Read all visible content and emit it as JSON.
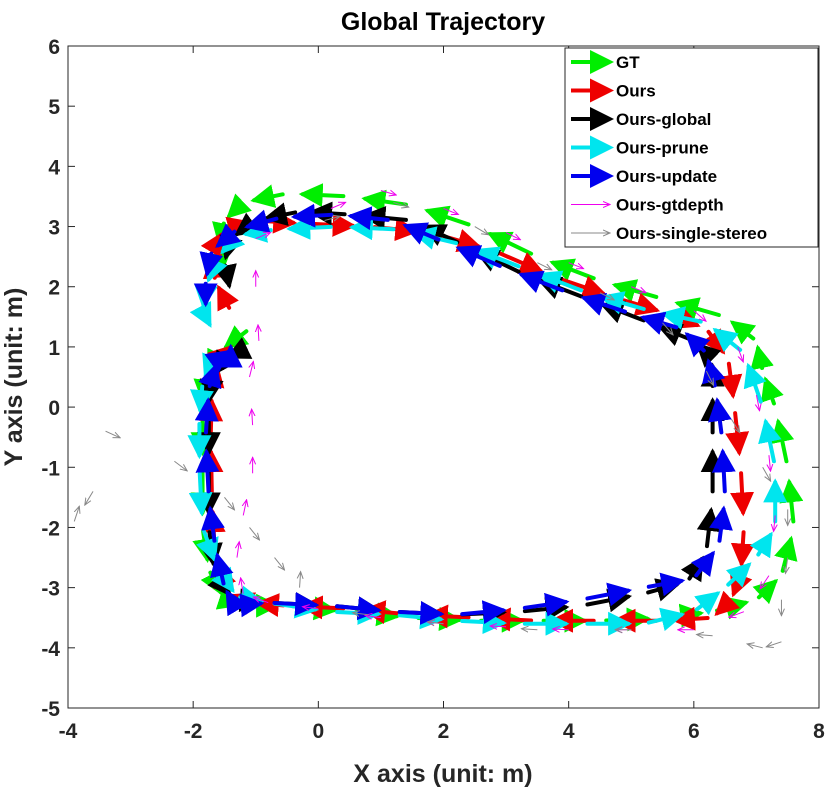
{
  "chart_data": {
    "type": "line",
    "title": "Global Trajectory",
    "xlabel": "X axis (unit: m)",
    "ylabel": "Y axis (unit: m)",
    "xlim": [
      -4,
      8
    ],
    "ylim": [
      -5,
      6
    ],
    "xticks": [
      -4,
      -2,
      0,
      2,
      4,
      6,
      8
    ],
    "yticks": [
      -5,
      -4,
      -3,
      -2,
      -1,
      0,
      1,
      2,
      3,
      4,
      5,
      6
    ],
    "grid": false,
    "legend_position": "top-right",
    "series": [
      {
        "name": "GT",
        "color": "#00ee00",
        "style": "dashed-arrows",
        "points": [
          [
            -1.1,
            1.3
          ],
          [
            -1.6,
            0.9
          ],
          [
            -1.8,
            0.5
          ],
          [
            -1.85,
            0
          ],
          [
            -1.85,
            -1
          ],
          [
            -1.85,
            -2
          ],
          [
            -1.75,
            -2.7
          ],
          [
            -1.5,
            -3.2
          ],
          [
            -1.2,
            -3.3
          ],
          [
            -0.5,
            -3.3
          ],
          [
            0.5,
            -3.4
          ],
          [
            1.5,
            -3.5
          ],
          [
            2.5,
            -3.55
          ],
          [
            3.5,
            -3.55
          ],
          [
            4.5,
            -3.55
          ],
          [
            5.5,
            -3.5
          ],
          [
            6.3,
            -3.4
          ],
          [
            7.0,
            -3.2
          ],
          [
            7.4,
            -2.8
          ],
          [
            7.6,
            -2.0
          ],
          [
            7.5,
            -1.0
          ],
          [
            7.3,
            0
          ],
          [
            7.1,
            0.6
          ],
          [
            7.0,
            1.1
          ],
          [
            6.5,
            1.5
          ],
          [
            5.5,
            1.8
          ],
          [
            4.5,
            2.1
          ],
          [
            3.5,
            2.5
          ],
          [
            2.5,
            3.0
          ],
          [
            1.5,
            3.35
          ],
          [
            0.5,
            3.5
          ],
          [
            -0.5,
            3.55
          ],
          [
            -1.2,
            3.4
          ],
          [
            -1.5,
            3.1
          ],
          [
            -1.6,
            2.6
          ],
          [
            -1.55,
            2.1
          ]
        ]
      },
      {
        "name": "Ours",
        "color": "#ee0000",
        "style": "dashed-arrows",
        "points": [
          [
            -1.4,
            1.6
          ],
          [
            -1.65,
            2.1
          ],
          [
            -1.7,
            2.6
          ],
          [
            -1.5,
            2.95
          ],
          [
            -1.0,
            3.1
          ],
          [
            -0.2,
            3.05
          ],
          [
            0.8,
            3.0
          ],
          [
            1.8,
            2.9
          ],
          [
            2.8,
            2.6
          ],
          [
            3.8,
            2.15
          ],
          [
            4.8,
            1.8
          ],
          [
            5.6,
            1.55
          ],
          [
            6.2,
            1.3
          ],
          [
            6.55,
            0.8
          ],
          [
            6.65,
            0
          ],
          [
            6.75,
            -1
          ],
          [
            6.8,
            -2
          ],
          [
            6.75,
            -2.8
          ],
          [
            6.6,
            -3.2
          ],
          [
            6.3,
            -3.5
          ],
          [
            5.5,
            -3.55
          ],
          [
            4.5,
            -3.55
          ],
          [
            3.5,
            -3.55
          ],
          [
            2.5,
            -3.5
          ],
          [
            1.5,
            -3.45
          ],
          [
            0.5,
            -3.35
          ],
          [
            -0.5,
            -3.3
          ],
          [
            -1.1,
            -3.25
          ],
          [
            -1.45,
            -3.1
          ],
          [
            -1.65,
            -2.5
          ],
          [
            -1.7,
            -1.5
          ],
          [
            -1.72,
            -0.5
          ],
          [
            -1.7,
            0.3
          ],
          [
            -1.6,
            0.8
          ],
          [
            -1.35,
            1.05
          ]
        ]
      },
      {
        "name": "Ours-global",
        "color": "#000000",
        "style": "dashed-arrows",
        "points": [
          [
            -1.2,
            0.95
          ],
          [
            -1.5,
            0.8
          ],
          [
            -1.7,
            0.5
          ],
          [
            -1.75,
            0
          ],
          [
            -1.75,
            -1
          ],
          [
            -1.75,
            -2
          ],
          [
            -1.65,
            -2.8
          ],
          [
            -1.35,
            -3.2
          ],
          [
            -0.8,
            -3.25
          ],
          [
            0.2,
            -3.3
          ],
          [
            1.2,
            -3.4
          ],
          [
            2.2,
            -3.45
          ],
          [
            3.2,
            -3.4
          ],
          [
            4.2,
            -3.3
          ],
          [
            5.2,
            -3.1
          ],
          [
            5.9,
            -2.9
          ],
          [
            6.2,
            -2.4
          ],
          [
            6.3,
            -1.5
          ],
          [
            6.3,
            -0.5
          ],
          [
            6.3,
            0.3
          ],
          [
            6.3,
            0.8
          ],
          [
            6.0,
            1.1
          ],
          [
            5.3,
            1.4
          ],
          [
            4.3,
            1.8
          ],
          [
            3.3,
            2.2
          ],
          [
            2.3,
            2.7
          ],
          [
            1.5,
            3.1
          ],
          [
            0.5,
            3.2
          ],
          [
            -0.3,
            3.25
          ],
          [
            -1.0,
            3.1
          ],
          [
            -1.4,
            2.8
          ],
          [
            -1.5,
            2.4
          ],
          [
            -1.4,
            1.9
          ]
        ]
      },
      {
        "name": "Ours-prune",
        "color": "#00e5ee",
        "style": "dashed-arrows",
        "points": [
          [
            -1.65,
            0.9
          ],
          [
            -1.85,
            0.4
          ],
          [
            -1.9,
            -0.2
          ],
          [
            -1.9,
            -1
          ],
          [
            -1.85,
            -2
          ],
          [
            -1.6,
            -2.7
          ],
          [
            -1.3,
            -3.15
          ],
          [
            -0.8,
            -3.25
          ],
          [
            0.2,
            -3.4
          ],
          [
            1.2,
            -3.45
          ],
          [
            2.2,
            -3.55
          ],
          [
            3.2,
            -3.6
          ],
          [
            4.2,
            -3.6
          ],
          [
            5.2,
            -3.6
          ],
          [
            6.0,
            -3.4
          ],
          [
            6.5,
            -3.0
          ],
          [
            7.0,
            -2.5
          ],
          [
            7.3,
            -2.0
          ],
          [
            7.3,
            -1.0
          ],
          [
            7.1,
            0
          ],
          [
            6.8,
            0.9
          ],
          [
            6.2,
            1.4
          ],
          [
            5.3,
            1.6
          ],
          [
            4.3,
            1.9
          ],
          [
            3.3,
            2.3
          ],
          [
            2.3,
            2.7
          ],
          [
            1.3,
            2.95
          ],
          [
            0.3,
            3.0
          ],
          [
            -0.7,
            2.95
          ],
          [
            -1.3,
            2.85
          ],
          [
            -1.6,
            2.5
          ],
          [
            -1.8,
            2.0
          ],
          [
            -1.85,
            1.6
          ],
          [
            -1.7,
            1.3
          ]
        ]
      },
      {
        "name": "Ours-update",
        "color": "#0000ee",
        "style": "dashed-arrows",
        "points": [
          [
            -1.3,
            -3.35
          ],
          [
            -1.5,
            -3.0
          ],
          [
            -1.65,
            -2.3
          ],
          [
            -1.75,
            -1.5
          ],
          [
            -1.8,
            -0.5
          ],
          [
            -1.75,
            0.3
          ],
          [
            -1.6,
            0.8
          ],
          [
            -1.4,
            0.95
          ],
          [
            -1.4,
            1.0
          ]
        ],
        "points_b": [
          [
            -1.3,
            -3.3
          ],
          [
            -0.8,
            -3.25
          ],
          [
            0.2,
            -3.3
          ],
          [
            1.2,
            -3.4
          ],
          [
            2.2,
            -3.45
          ],
          [
            3.2,
            -3.35
          ],
          [
            4.2,
            -3.2
          ],
          [
            5.2,
            -3.0
          ],
          [
            6.0,
            -2.85
          ],
          [
            6.4,
            -2.3
          ],
          [
            6.5,
            -1.5
          ],
          [
            6.45,
            -0.5
          ],
          [
            6.35,
            0.3
          ],
          [
            6.2,
            0.9
          ],
          [
            5.8,
            1.3
          ],
          [
            5.0,
            1.55
          ],
          [
            4.0,
            1.9
          ],
          [
            3.0,
            2.3
          ],
          [
            2.0,
            2.75
          ],
          [
            1.2,
            3.1
          ],
          [
            0.3,
            3.2
          ],
          [
            -0.6,
            3.15
          ],
          [
            -1.3,
            2.95
          ],
          [
            -1.7,
            2.6
          ],
          [
            -1.8,
            2.1
          ],
          [
            -1.8,
            1.6
          ]
        ]
      },
      {
        "name": "Ours-gtdepth",
        "color": "#ee00ee",
        "style": "sparse-arrows",
        "points": [
          [
            1.0,
            3.6
          ],
          [
            2.0,
            3.3
          ],
          [
            3.0,
            2.9
          ],
          [
            4.0,
            2.4
          ],
          [
            5.0,
            2.0
          ],
          [
            6.0,
            1.6
          ],
          [
            6.7,
            1.0
          ],
          [
            7.0,
            0.2
          ],
          [
            7.2,
            -0.8
          ],
          [
            7.3,
            -1.8
          ],
          [
            7.2,
            -2.8
          ],
          [
            6.8,
            -3.4
          ],
          [
            6.0,
            -3.7
          ],
          [
            5.0,
            -3.7
          ],
          [
            4.0,
            -3.7
          ],
          [
            3.0,
            -3.65
          ],
          [
            2.0,
            -3.6
          ],
          [
            1.0,
            -3.5
          ],
          [
            0.0,
            -3.35
          ],
          [
            -0.8,
            -3.25
          ],
          [
            -1.2,
            -3.1
          ],
          [
            -1.3,
            -2.5
          ],
          [
            -1.2,
            -1.8
          ],
          [
            -1.05,
            -1.1
          ],
          [
            -1.05,
            -0.3
          ],
          [
            -1.1,
            0.5
          ],
          [
            -0.95,
            1.1
          ],
          [
            -1.0,
            2.0
          ],
          [
            -1.0,
            2.8
          ],
          [
            0.2,
            3.3
          ]
        ]
      },
      {
        "name": "Ours-single-stereo",
        "color": "#888888",
        "style": "sparse-arrows",
        "points": [
          [
            -3.6,
            -1.4
          ],
          [
            -3.9,
            -1.9
          ],
          [
            -3.4,
            -0.4
          ],
          [
            -2.3,
            -0.9
          ],
          [
            -1.5,
            -1.5
          ],
          [
            -1.1,
            -2.0
          ],
          [
            -0.7,
            -2.5
          ],
          [
            -0.3,
            -3.0
          ],
          [
            0.1,
            3.1
          ],
          [
            1.2,
            3.4
          ],
          [
            2.5,
            3.0
          ],
          [
            3.5,
            2.4
          ],
          [
            4.5,
            1.9
          ],
          [
            5.5,
            1.4
          ],
          [
            6.2,
            0.6
          ],
          [
            6.6,
            -0.2
          ],
          [
            7.1,
            -1.0
          ],
          [
            7.5,
            -1.7
          ],
          [
            7.5,
            -2.5
          ],
          [
            7.4,
            -3.2
          ],
          [
            7.4,
            -3.9
          ],
          [
            7.1,
            -4.0
          ],
          [
            6.3,
            -3.8
          ],
          [
            5.0,
            -3.7
          ],
          [
            3.5,
            -3.7
          ],
          [
            2.0,
            -3.6
          ],
          [
            0.8,
            -3.45
          ]
        ]
      }
    ]
  }
}
